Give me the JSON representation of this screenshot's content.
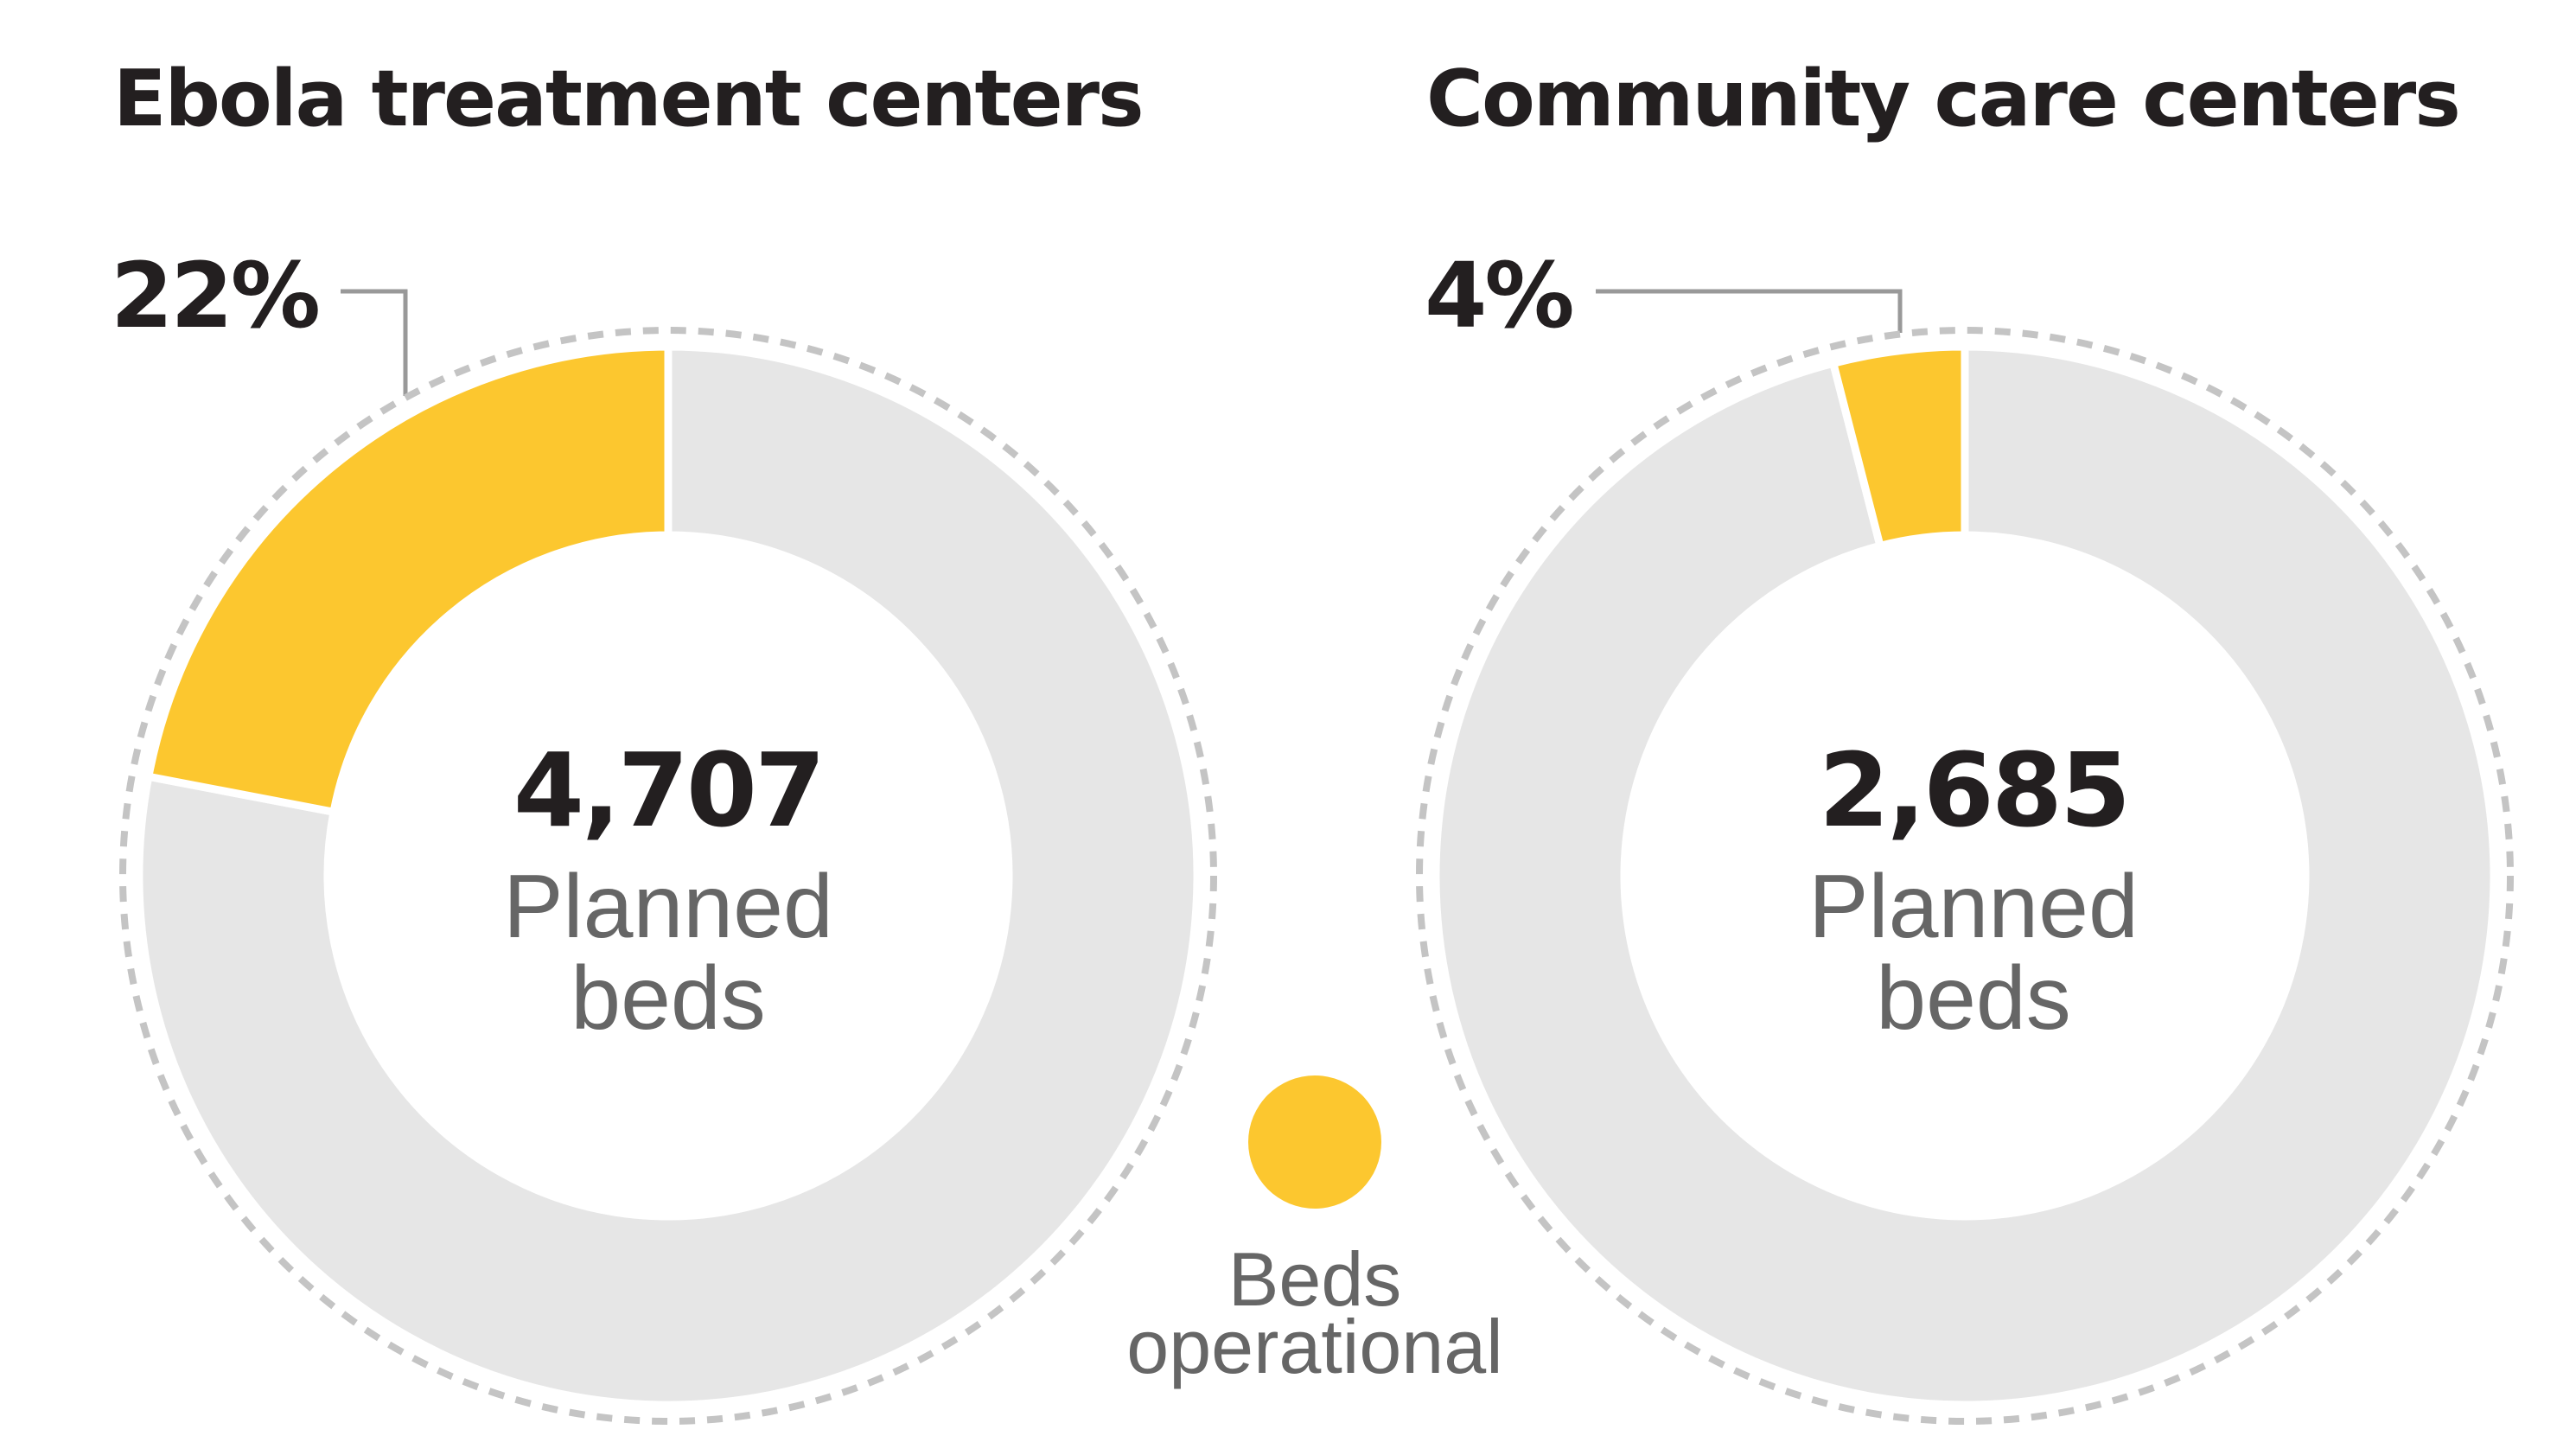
{
  "colors": {
    "operational": "#fcc72f",
    "remaining": "#e6e6e6",
    "outline": "#c4c4c4",
    "text": "#231f20",
    "subtext": "#666666"
  },
  "chart_data": [
    {
      "type": "pie",
      "title": "Ebola treatment centers",
      "total_planned_beds": 4707,
      "total_label": "4,707",
      "center_label_line1": "Planned",
      "center_label_line2": "beds",
      "operational_percent": 22,
      "percent_label": "22%"
    },
    {
      "type": "pie",
      "title": "Community care centers",
      "total_planned_beds": 2685,
      "total_label": "2,685",
      "center_label_line1": "Planned",
      "center_label_line2": "beds",
      "operational_percent": 4,
      "percent_label": "4%"
    }
  ],
  "legend": {
    "line1": "Beds",
    "line2": "operational",
    "color": "#fcc72f"
  }
}
